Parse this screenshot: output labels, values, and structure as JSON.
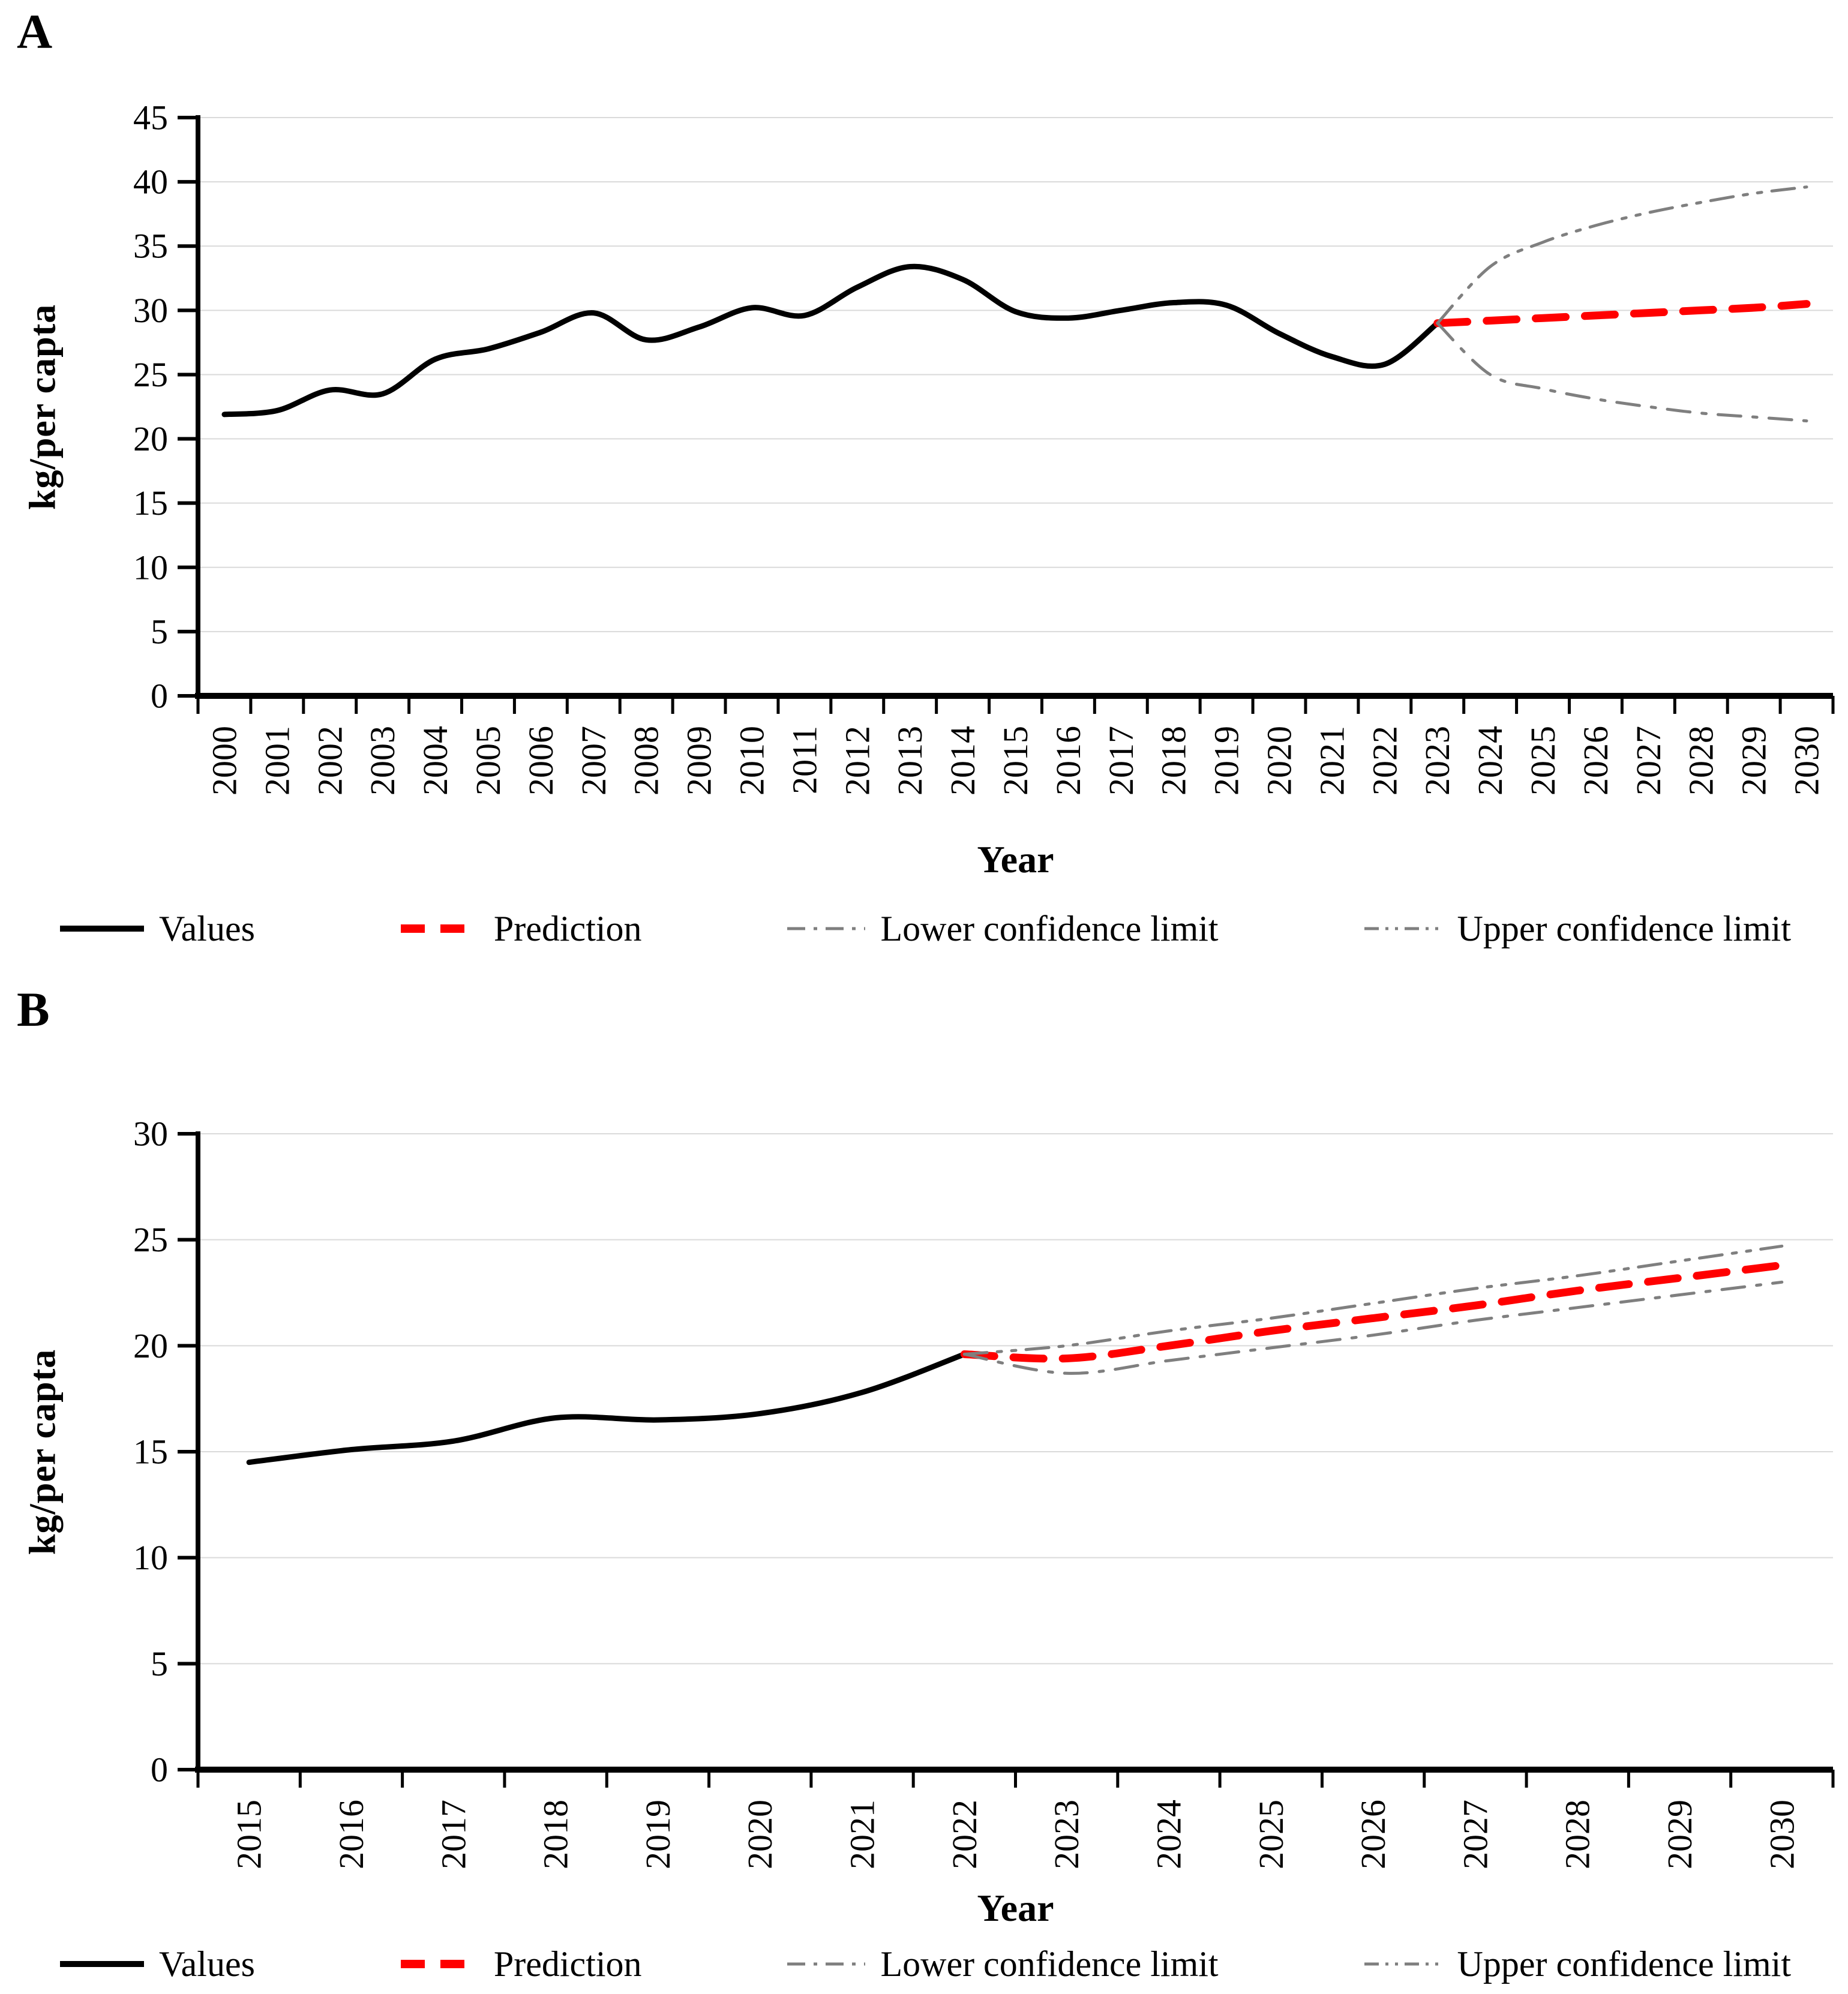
{
  "figure": {
    "panels": [
      {
        "label": "A"
      },
      {
        "label": "B"
      }
    ]
  },
  "colors": {
    "values": "#000000",
    "prediction": "#FF0000",
    "confidence": "#7F7F7F",
    "gridline": "#DADADA",
    "axis": "#000000"
  },
  "chart_data": [
    {
      "id": "A",
      "type": "line",
      "title": "",
      "xlabel": "Year",
      "ylabel": "kg/per capta",
      "x": [
        2000,
        2001,
        2002,
        2003,
        2004,
        2005,
        2006,
        2007,
        2008,
        2009,
        2010,
        2011,
        2012,
        2013,
        2014,
        2015,
        2016,
        2017,
        2018,
        2019,
        2020,
        2021,
        2022,
        2023,
        2024,
        2025,
        2026,
        2027,
        2028,
        2029,
        2030
      ],
      "ylim": [
        0,
        45
      ],
      "ytick_step": 5,
      "grid": true,
      "legend_position": "bottom",
      "series": [
        {
          "name": "Values",
          "x_start": 2000,
          "color": "#000000",
          "dash": "solid",
          "width": 9,
          "values": [
            21.9,
            22.2,
            23.8,
            23.5,
            26.2,
            27.0,
            28.3,
            29.8,
            27.7,
            28.7,
            30.2,
            29.6,
            31.8,
            33.4,
            32.4,
            29.9,
            29.4,
            30.0,
            30.6,
            30.4,
            28.2,
            26.4,
            25.8,
            29.0
          ]
        },
        {
          "name": "Prediction",
          "x_start": 2023,
          "color": "#FF0000",
          "dash": "dash",
          "width": 13,
          "values": [
            29.0,
            29.2,
            29.4,
            29.6,
            29.8,
            30.0,
            30.2,
            30.5
          ]
        },
        {
          "name": "Lower confidence limit",
          "x_start": 2023,
          "color": "#7F7F7F",
          "dash": "dashdot",
          "width": 5,
          "values": [
            29.0,
            25.0,
            23.9,
            23.1,
            22.5,
            22.0,
            21.7,
            21.4
          ]
        },
        {
          "name": "Upper confidence limit",
          "x_start": 2023,
          "color": "#7F7F7F",
          "dash": "dashdotdot",
          "width": 5,
          "values": [
            29.0,
            33.4,
            35.3,
            36.6,
            37.6,
            38.4,
            39.1,
            39.6
          ]
        }
      ]
    },
    {
      "id": "B",
      "type": "line",
      "title": "",
      "xlabel": "Year",
      "ylabel": "kg/per capta",
      "x": [
        2015,
        2016,
        2017,
        2018,
        2019,
        2020,
        2021,
        2022,
        2023,
        2024,
        2025,
        2026,
        2027,
        2028,
        2029,
        2030
      ],
      "ylim": [
        0,
        30
      ],
      "ytick_step": 5,
      "grid": true,
      "legend_position": "bottom",
      "series": [
        {
          "name": "Values",
          "x_start": 2015,
          "color": "#000000",
          "dash": "solid",
          "width": 9,
          "values": [
            14.5,
            15.1,
            15.5,
            16.6,
            16.5,
            16.8,
            17.8,
            19.6
          ]
        },
        {
          "name": "Prediction",
          "x_start": 2022,
          "color": "#FF0000",
          "dash": "dash",
          "width": 13,
          "values": [
            19.6,
            19.4,
            20.0,
            20.7,
            21.3,
            21.9,
            22.6,
            23.2,
            23.8
          ]
        },
        {
          "name": "Lower confidence limit",
          "x_start": 2022,
          "color": "#7F7F7F",
          "dash": "dashdot",
          "width": 5,
          "values": [
            19.6,
            18.7,
            19.3,
            19.9,
            20.5,
            21.2,
            21.8,
            22.4,
            23.0
          ]
        },
        {
          "name": "Upper confidence limit",
          "x_start": 2022,
          "color": "#7F7F7F",
          "dash": "dashdotdot",
          "width": 5,
          "values": [
            19.6,
            20.0,
            20.7,
            21.3,
            22.0,
            22.7,
            23.3,
            24.0,
            24.7
          ]
        }
      ]
    }
  ]
}
